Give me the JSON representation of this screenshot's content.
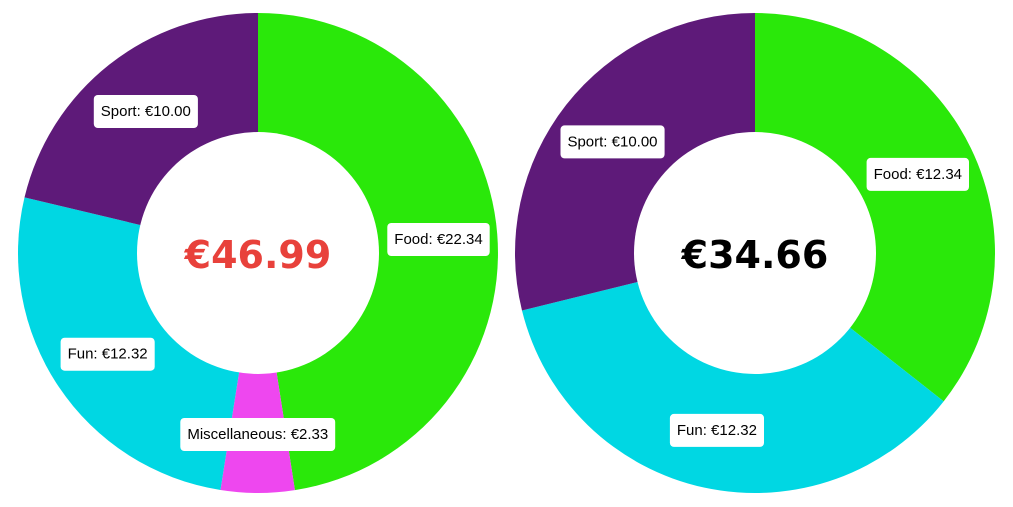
{
  "chart_data": [
    {
      "type": "pie",
      "total_label": "€46.99",
      "total_color": "#e8413b",
      "slices": [
        {
          "label": "Food: €22.34",
          "value": 22.34,
          "color": "#2ae80a"
        },
        {
          "label": "Miscellaneous: €2.33",
          "value": 2.33,
          "color": "#ee47ef"
        },
        {
          "label": "Fun: €12.32",
          "value": 12.32,
          "color": "#00d7e3"
        },
        {
          "label": "Sport: €10.00",
          "value": 10.0,
          "color": "#5e1a79"
        }
      ]
    },
    {
      "type": "pie",
      "total_label": "€34.66",
      "total_color": "#000000",
      "slices": [
        {
          "label": "Food: €12.34",
          "value": 12.34,
          "color": "#2ae80a"
        },
        {
          "label": "Fun: €12.32",
          "value": 12.32,
          "color": "#00d7e3"
        },
        {
          "label": "Sport: €10.00",
          "value": 10.0,
          "color": "#5e1a79"
        }
      ]
    }
  ]
}
